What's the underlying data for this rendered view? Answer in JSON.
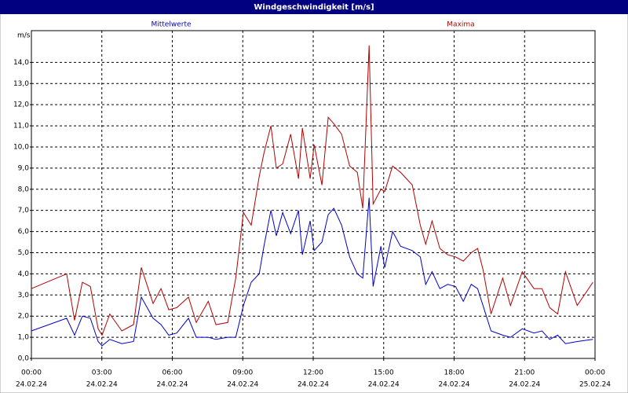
{
  "chart_data": {
    "type": "line",
    "title": "Windgeschwindigkeit [m/s]",
    "y_label": "m/s",
    "x": [
      0,
      1.5,
      1.84,
      2.17,
      2.51,
      2.84,
      3.01,
      3.34,
      3.85,
      4.35,
      4.68,
      5.18,
      5.52,
      5.85,
      6.19,
      6.69,
      7.02,
      7.53,
      7.86,
      8.36,
      8.7,
      9.03,
      9.36,
      9.7,
      9.9,
      10.2,
      10.43,
      10.7,
      11.04,
      11.37,
      11.54,
      11.87,
      12.04,
      12.37,
      12.64,
      12.88,
      13.21,
      13.55,
      13.88,
      14.11,
      14.38,
      14.55,
      14.88,
      15.05,
      15.38,
      15.72,
      16.22,
      16.56,
      16.79,
      17.06,
      17.39,
      17.73,
      18.06,
      18.39,
      18.73,
      19.0,
      19.23,
      19.57,
      20.07,
      20.4,
      20.9,
      21.4,
      21.74,
      22.07,
      22.41,
      22.74,
      23.24,
      23.91
    ],
    "series": [
      {
        "name": "Mittelwerte",
        "color": "#0000c8",
        "values": [
          1.3,
          1.9,
          1.1,
          2.0,
          1.9,
          0.8,
          0.6,
          0.9,
          0.7,
          0.8,
          2.9,
          1.9,
          1.6,
          1.1,
          1.2,
          1.9,
          1.0,
          1.0,
          0.9,
          1.0,
          1.0,
          2.5,
          3.6,
          4.0,
          5.3,
          7.0,
          5.8,
          6.9,
          5.9,
          7.0,
          4.9,
          6.5,
          5.1,
          5.5,
          6.8,
          7.1,
          6.3,
          4.8,
          4.0,
          3.8,
          7.6,
          3.4,
          5.3,
          4.3,
          6.0,
          5.3,
          5.1,
          4.8,
          3.5,
          4.1,
          3.3,
          3.5,
          3.4,
          2.7,
          3.5,
          3.3,
          2.5,
          1.3,
          1.1,
          1.0,
          1.4,
          1.2,
          1.3,
          0.9,
          1.1,
          0.7,
          0.8,
          0.9
        ]
      },
      {
        "name": "Maxima",
        "color": "#b40000",
        "values": [
          3.3,
          4.0,
          1.8,
          3.6,
          3.4,
          1.4,
          1.1,
          2.1,
          1.3,
          1.6,
          4.3,
          2.6,
          3.3,
          2.3,
          2.4,
          2.9,
          1.7,
          2.7,
          1.6,
          1.7,
          3.8,
          6.9,
          6.3,
          8.6,
          9.7,
          11.0,
          9.0,
          9.2,
          10.6,
          8.5,
          10.9,
          8.5,
          10.1,
          8.2,
          11.4,
          11.1,
          10.6,
          9.1,
          8.8,
          7.1,
          14.8,
          7.3,
          8.0,
          7.9,
          9.1,
          8.8,
          8.2,
          6.3,
          5.4,
          6.5,
          5.2,
          4.9,
          4.8,
          4.6,
          5.0,
          5.2,
          4.2,
          2.1,
          3.8,
          2.5,
          4.1,
          3.3,
          3.3,
          2.4,
          2.1,
          4.1,
          2.5,
          3.6
        ]
      }
    ],
    "xlim": [
      0,
      24
    ],
    "ylim": [
      0,
      15.5
    ],
    "xticks": [
      {
        "value": 0,
        "label": "00:00",
        "date": "24.02.24"
      },
      {
        "value": 3,
        "label": "03:00",
        "date": "24.02.24"
      },
      {
        "value": 6,
        "label": "06:00",
        "date": "24.02.24"
      },
      {
        "value": 9,
        "label": "09:00",
        "date": "24.02.24"
      },
      {
        "value": 12,
        "label": "12:00",
        "date": "24.02.24"
      },
      {
        "value": 15,
        "label": "15:00",
        "date": "24.02.24"
      },
      {
        "value": 18,
        "label": "18:00",
        "date": "24.02.24"
      },
      {
        "value": 21,
        "label": "21:00",
        "date": "24.02.24"
      },
      {
        "value": 24,
        "label": "00:00",
        "date": "25.02.24"
      }
    ],
    "yticks": [
      {
        "value": 0,
        "label": "0,0"
      },
      {
        "value": 1,
        "label": "1,0"
      },
      {
        "value": 2,
        "label": "2,0"
      },
      {
        "value": 3,
        "label": "3,0"
      },
      {
        "value": 4,
        "label": "4,0"
      },
      {
        "value": 5,
        "label": "5,0"
      },
      {
        "value": 6,
        "label": "6,0"
      },
      {
        "value": 7,
        "label": "7,0"
      },
      {
        "value": 8,
        "label": "8,0"
      },
      {
        "value": 9,
        "label": "9,0"
      },
      {
        "value": 10,
        "label": "10,0"
      },
      {
        "value": 11,
        "label": "11,0"
      },
      {
        "value": 12,
        "label": "12,0"
      },
      {
        "value": 13,
        "label": "13,0"
      },
      {
        "value": 14,
        "label": "14,0"
      }
    ],
    "grid": true
  }
}
